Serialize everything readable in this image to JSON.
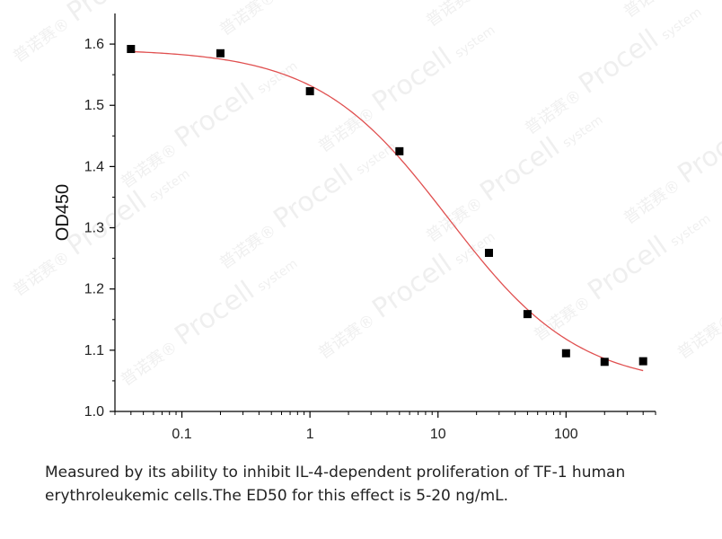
{
  "chart_data": {
    "type": "scatter",
    "title": "",
    "xlabel": "",
    "ylabel": "OD450",
    "xscale": "log",
    "xlim": [
      0.03,
      500
    ],
    "ylim": [
      1.0,
      1.65
    ],
    "x_ticks": [
      0.1,
      1,
      10,
      100
    ],
    "x_tick_labels": [
      "0.1",
      "1",
      "10",
      "100"
    ],
    "y_ticks": [
      1.0,
      1.1,
      1.2,
      1.3,
      1.4,
      1.5,
      1.6
    ],
    "y_tick_labels": [
      "1.0",
      "1.1",
      "1.2",
      "1.3",
      "1.4",
      "1.5",
      "1.6"
    ],
    "grid": false,
    "legend": "none",
    "series": [
      {
        "type": "scatter",
        "marker": "square",
        "color": "#000000",
        "x": [
          0.04,
          0.2,
          1,
          5,
          25,
          50,
          100,
          200,
          400
        ],
        "y": [
          1.592,
          1.585,
          1.523,
          1.425,
          1.259,
          1.159,
          1.095,
          1.081,
          1.082
        ]
      },
      {
        "type": "line",
        "fit": "four-parameter logistic",
        "color": "#e05050",
        "params": {
          "top": 1.592,
          "bottom": 1.04,
          "ec50": 12,
          "hill": 0.85
        },
        "x_range": [
          0.04,
          400
        ]
      }
    ]
  },
  "watermark": {
    "brand": "Procell",
    "suffix": "system",
    "cn": "普诺赛®"
  },
  "caption": "Measured by its ability to inhibit IL-4-dependent proliferation of TF-1 human erythroleukemic cells.The ED50 for this effect is 5-20 ng/mL."
}
